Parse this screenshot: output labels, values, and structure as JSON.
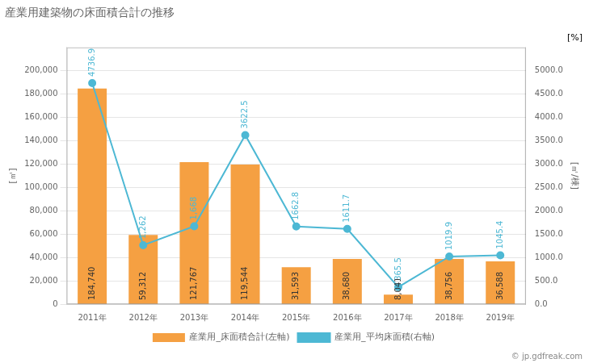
{
  "chart_data": {
    "type": "bar",
    "title": "産業用建築物の床面積合計の推移",
    "categories": [
      "2011年",
      "2012年",
      "2013年",
      "2014年",
      "2015年",
      "2016年",
      "2017年",
      "2018年",
      "2019年"
    ],
    "series": [
      {
        "name": "産業用_床面積合計(左軸)",
        "type": "bar",
        "color": "#f5a042",
        "values": [
          184740,
          59312,
          121767,
          119544,
          31593,
          38680,
          8041,
          38756,
          36588
        ],
        "value_labels": [
          "184,740",
          "59,312",
          "121,767",
          "119,544",
          "31,593",
          "38,680",
          "8,041",
          "38,756",
          "36,588"
        ]
      },
      {
        "name": "産業用_平均床面積(右軸)",
        "type": "line",
        "axis": "y2",
        "color": "#4db8d4",
        "marker": "circle",
        "values": [
          4736.9,
          1262.0,
          1668.0,
          3622.5,
          1662.8,
          1611.7,
          365.5,
          1019.9,
          1045.4
        ],
        "value_labels": [
          "4736.9",
          "1,262",
          "1,668",
          "3622.5",
          "1662.8",
          "1611.7",
          "365.5",
          "1019.9",
          "1045.4"
        ]
      }
    ],
    "y_label": "[㎡]",
    "y2_label": "[㎡/棟]",
    "annotations": [
      "[%]",
      "© jp.gdfreak.com"
    ],
    "ylim": [
      0,
      220000
    ],
    "yticks": [
      0,
      {
        "value": 20000,
        "label": "20,000"
      },
      {
        "value": 40000,
        "label": "40,000"
      },
      {
        "value": 60000,
        "label": "60,000"
      },
      {
        "value": 80000,
        "label": "80,000"
      },
      {
        "value": 100000,
        "label": "100,000"
      },
      {
        "value": 120000,
        "label": "120,000"
      },
      {
        "value": 140000,
        "label": "140,000"
      },
      {
        "value": 160000,
        "label": "160,000"
      },
      {
        "value": 180000,
        "label": "180,000"
      },
      {
        "value": 200000,
        "label": "200,000"
      }
    ],
    "y2lim": [
      0,
      5500
    ],
    "y2ticks": [
      {
        "value": 0,
        "label": "0.0"
      },
      {
        "value": 500,
        "label": "500.0"
      },
      {
        "value": 1000,
        "label": "1000.0"
      },
      {
        "value": 1500,
        "label": "1500.0"
      },
      {
        "value": 2000,
        "label": "2000.0"
      },
      {
        "value": 2500,
        "label": "2500.0"
      },
      {
        "value": 3000,
        "label": "3000.0"
      },
      {
        "value": 3500,
        "label": "3500.0"
      },
      {
        "value": 4000,
        "label": "4000.0"
      },
      {
        "value": 4500,
        "label": "4500.0"
      },
      {
        "value": 5000,
        "label": "5000.0"
      }
    ],
    "grid": true,
    "legend": "bottom",
    "data_labels": true
  }
}
